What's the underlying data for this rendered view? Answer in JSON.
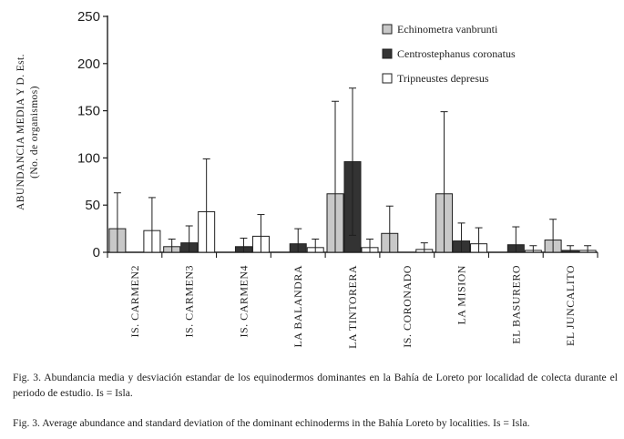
{
  "chart_data": {
    "type": "bar",
    "ylabel_line1": "ABUNDANCIA MEDIA Y D. Est.",
    "ylabel_line2": "(No. de organismos)",
    "ylim": [
      0,
      250
    ],
    "yticks": [
      0,
      50,
      100,
      150,
      200,
      250
    ],
    "categories": [
      "IS. CARMEN2",
      "IS. CARMEN3",
      "IS. CARMEN4",
      "LA BALANDRA",
      "LA TINTORERA",
      "IS. CORONADO",
      "LA MISION",
      "EL BASURERO",
      "EL JUNCALITO"
    ],
    "legend_position": "top-right",
    "series": [
      {
        "name": "Echinometra vanbrunti",
        "color": "#c8c8c8",
        "values": [
          25,
          6,
          0,
          0,
          62,
          20,
          62,
          0,
          13
        ],
        "error": [
          38,
          8,
          0,
          0,
          98,
          29,
          87,
          0,
          22
        ]
      },
      {
        "name": "Centrostephanus coronatus",
        "color": "#333333",
        "values": [
          0,
          10,
          6,
          9,
          96,
          0,
          12,
          8,
          2
        ],
        "error": [
          0,
          18,
          9,
          16,
          78,
          0,
          19,
          19,
          5
        ]
      },
      {
        "name": "Tripneustes depresus",
        "color": "#ffffff",
        "values": [
          23,
          43,
          17,
          5,
          5,
          3,
          9,
          2,
          2
        ],
        "error": [
          35,
          56,
          23,
          9,
          9,
          7,
          17,
          5,
          5
        ]
      }
    ]
  },
  "caption_es": "Fig. 3. Abundancia media y desviación estandar de los equinodermos dominantes en la Bahía de Loreto por localidad de colecta durante el periodo de estudio. Is = Isla.",
  "caption_en": "Fig. 3. Average abundance and standard deviation of the dominant echinoderms in the Bahía Loreto by localities. Is = Isla."
}
